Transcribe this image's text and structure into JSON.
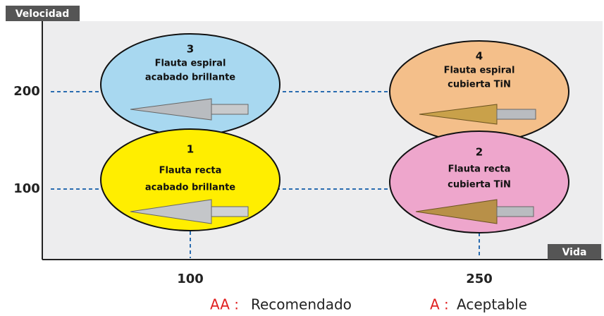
{
  "axes": {
    "y_label": "Velocidad",
    "x_label": "Vida",
    "y_ticks": [
      "200",
      "100"
    ],
    "x_ticks": [
      "100",
      "250"
    ]
  },
  "nodes": [
    {
      "number": "3",
      "label_lines": [
        "Flauta espiral",
        "acabado brillante"
      ]
    },
    {
      "number": "4",
      "label_lines": [
        "Flauta espiral",
        "cubierta TiN"
      ]
    },
    {
      "number": "1",
      "label_lines": [
        "Flauta recta",
        "acabado brillante"
      ]
    },
    {
      "number": "2",
      "label_lines": [
        "Flauta recta",
        "cubierta TiN"
      ]
    }
  ],
  "legend": [
    {
      "code": "AA :",
      "text": "Recomendado"
    },
    {
      "code": "A :",
      "text": "Aceptable"
    }
  ]
}
